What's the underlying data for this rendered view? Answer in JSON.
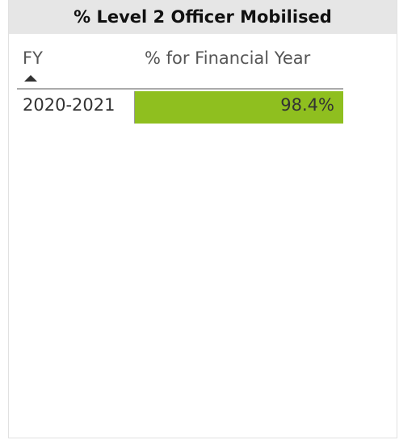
{
  "header": {
    "title": "% Level 2 Officer Mobilised"
  },
  "table": {
    "columns": [
      "FY",
      "% for Financial Year"
    ],
    "rows": [
      [
        "2020-2021",
        "98.4%"
      ]
    ]
  }
}
